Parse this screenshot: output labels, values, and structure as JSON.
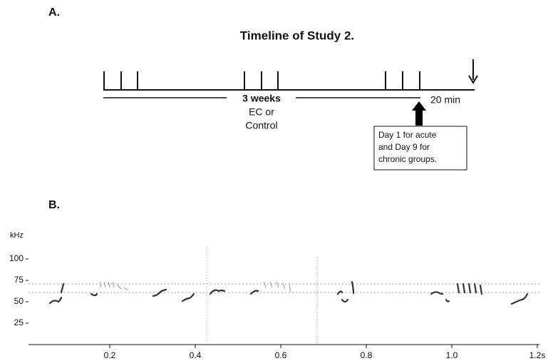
{
  "panel_a": {
    "label": "A.",
    "title": "Timeline of Study 2.",
    "duration": "3 weeks",
    "condition": [
      "EC or",
      "Control"
    ],
    "delay": "20 min",
    "note": [
      "Day 1 for acute",
      "and Day 9 for",
      "chronic groups."
    ]
  },
  "panel_b": {
    "label": "B.",
    "y_label": "kHz",
    "xlim": [
      0.01,
      1.2
    ],
    "ylim": [
      0,
      115
    ],
    "xticks": [
      0.2,
      0.4,
      0.6,
      0.8,
      {
        "value": 1,
        "label": "1.0"
      },
      {
        "value": 1.2,
        "label": "1.2s"
      }
    ],
    "yticks": [
      25,
      50,
      75,
      100
    ]
  }
}
